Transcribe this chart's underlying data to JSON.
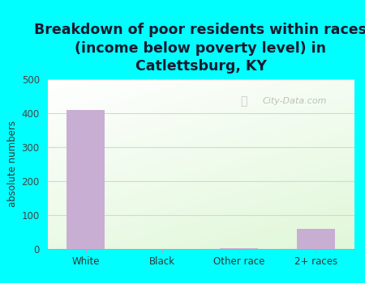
{
  "title": "Breakdown of poor residents within races\n(income below poverty level) in\nCatlettsburg, KY",
  "categories": [
    "White",
    "Black",
    "Other race",
    "2+ races"
  ],
  "values": [
    410,
    0,
    2,
    60
  ],
  "bar_color": "#c9aed4",
  "ylabel": "absolute numbers",
  "ylim": [
    0,
    500
  ],
  "yticks": [
    0,
    100,
    200,
    300,
    400,
    500
  ],
  "fig_bg": "#00ffff",
  "title_color": "#1a1a2e",
  "title_fontsize": 12.5,
  "axis_label_fontsize": 8.5,
  "tick_fontsize": 8.5,
  "watermark": "City-Data.com",
  "grid_color": "#ccddcc",
  "bar_width": 0.5
}
